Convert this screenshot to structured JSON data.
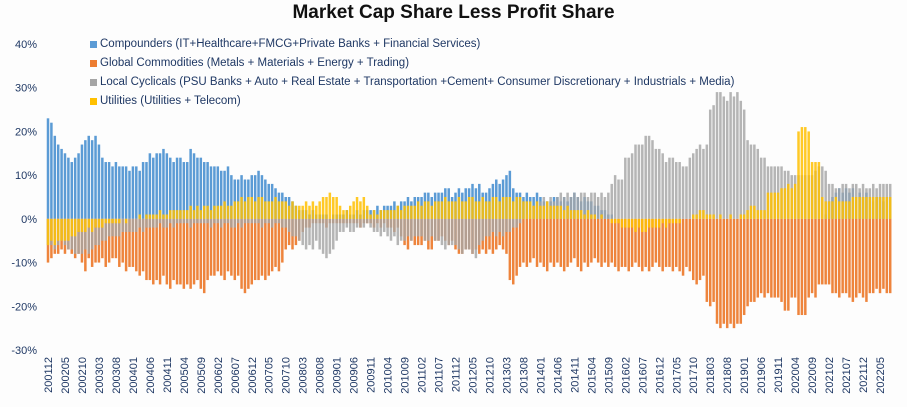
{
  "chart_data": {
    "type": "bar",
    "title": "Market Cap Share Less Profit Share",
    "xlabel": "",
    "ylabel": "",
    "ylim": [
      -30,
      40
    ],
    "yticks": [
      "40%",
      "30%",
      "20%",
      "10%",
      "0%",
      "-10%",
      "-20%",
      "-30%"
    ],
    "ytick_values": [
      40,
      30,
      20,
      10,
      0,
      -10,
      -20,
      -30
    ],
    "grid": false,
    "legend_position": "top-left",
    "period": "monthly, starting 200112",
    "xtick_every_months": 5,
    "xticks": [
      "200112",
      "200205",
      "200210",
      "200303",
      "200308",
      "200401",
      "200406",
      "200411",
      "200504",
      "200509",
      "200602",
      "200607",
      "200612",
      "200705",
      "200710",
      "200803",
      "200808",
      "200901",
      "200906",
      "200911",
      "201004",
      "201009",
      "201102",
      "201107",
      "201112",
      "201205",
      "201210",
      "201303",
      "201308",
      "201401",
      "201406",
      "201411",
      "201504",
      "201509",
      "201602",
      "201607",
      "201612",
      "201705",
      "201710",
      "201803",
      "201808",
      "201901",
      "201906",
      "201911",
      "202004",
      "202009",
      "202102",
      "202107",
      "202112",
      "202205"
    ],
    "series": [
      {
        "name": "Compounders (IT+Healthcare+FMCG+Private Banks + Financial Services)",
        "color": "#5b9bd5",
        "values": [
          23,
          22,
          19,
          17,
          16,
          15,
          14,
          13,
          14,
          15,
          17,
          18,
          19,
          18,
          19,
          17,
          14,
          13,
          13,
          12,
          13,
          12,
          12,
          12,
          11,
          12,
          12,
          11,
          13,
          13,
          15,
          14,
          15,
          15,
          16,
          15,
          14,
          13,
          14,
          14,
          13,
          13,
          16,
          15,
          14,
          14,
          13,
          13,
          12,
          12,
          12,
          11,
          11,
          12,
          10,
          9,
          9,
          10,
          9,
          9,
          10,
          10,
          11,
          10,
          9,
          8,
          8,
          7,
          6,
          6,
          5,
          5,
          4,
          3,
          2,
          2,
          2,
          1,
          2,
          1,
          1,
          1,
          1,
          0,
          1,
          1,
          1,
          1,
          2,
          1,
          1,
          2,
          1,
          2,
          2,
          2,
          2,
          3,
          2,
          3,
          3,
          3,
          4,
          3,
          4,
          4,
          5,
          4,
          5,
          5,
          5,
          6,
          6,
          5,
          6,
          6,
          6,
          7,
          7,
          5,
          6,
          7,
          6,
          7,
          7,
          8,
          7,
          8,
          6,
          6,
          7,
          8,
          9,
          8,
          9,
          10,
          11,
          7,
          6,
          6,
          5,
          6,
          5,
          5,
          6,
          5,
          4,
          4,
          4,
          5,
          5,
          4,
          5,
          4,
          5,
          6,
          5,
          4,
          5,
          4,
          4,
          3,
          3,
          2,
          2,
          1,
          1,
          0,
          0,
          0,
          0,
          0,
          0,
          0,
          0,
          0,
          0,
          0,
          0,
          0,
          0,
          0,
          0,
          0,
          0,
          0,
          0,
          0,
          0,
          0,
          0,
          0,
          0,
          0,
          0,
          0,
          0,
          0,
          0,
          0,
          0,
          0,
          0,
          0,
          0,
          0,
          0,
          0,
          0,
          0,
          0,
          0,
          0,
          0,
          0,
          0,
          0,
          0,
          0,
          0,
          0,
          0,
          0,
          0,
          0,
          0,
          0,
          0,
          0,
          1,
          4,
          5,
          6,
          7,
          6,
          7,
          6,
          7,
          5,
          6,
          5,
          6,
          5,
          4,
          5,
          5,
          4,
          5,
          5
        ]
      },
      {
        "name": "Global Commodities (Metals + Materials + Energy + Trading)",
        "color": "#ed7d31",
        "values": [
          -10,
          -9,
          -8,
          -8,
          -7,
          -8,
          -7,
          -8,
          -9,
          -8,
          -10,
          -12,
          -9,
          -11,
          -10,
          -10,
          -9,
          -11,
          -10,
          -9,
          -9,
          -11,
          -10,
          -12,
          -11,
          -11,
          -12,
          -13,
          -12,
          -14,
          -14,
          -15,
          -14,
          -15,
          -13,
          -15,
          -16,
          -14,
          -15,
          -15,
          -16,
          -15,
          -16,
          -15,
          -14,
          -16,
          -17,
          -14,
          -13,
          -13,
          -12,
          -13,
          -14,
          -12,
          -13,
          -14,
          -13,
          -16,
          -17,
          -16,
          -15,
          -14,
          -14,
          -13,
          -14,
          -13,
          -12,
          -11,
          -12,
          -10,
          -7,
          -6,
          -7,
          -6,
          -5,
          -3,
          -2,
          -2,
          -1,
          -1,
          -1,
          -1,
          -2,
          -1,
          -1,
          -1,
          -1,
          -1,
          -1,
          -1,
          -1,
          -1,
          -2,
          -1,
          -1,
          -1,
          -2,
          -1,
          -2,
          -1,
          -2,
          -2,
          -3,
          -2,
          -4,
          -6,
          -7,
          -5,
          -6,
          -6,
          -6,
          -5,
          -7,
          -7,
          -5,
          -5,
          -4,
          -5,
          -6,
          -5,
          -7,
          -8,
          -8,
          -7,
          -7,
          -8,
          -7,
          -8,
          -7,
          -8,
          -7,
          -8,
          -7,
          -6,
          -7,
          -8,
          -14,
          -15,
          -13,
          -11,
          -10,
          -11,
          -10,
          -9,
          -11,
          -10,
          -11,
          -12,
          -10,
          -11,
          -10,
          -11,
          -12,
          -11,
          -10,
          -9,
          -11,
          -12,
          -10,
          -11,
          -10,
          -9,
          -10,
          -11,
          -10,
          -11,
          -10,
          -11,
          -12,
          -11,
          -11,
          -12,
          -11,
          -10,
          -11,
          -12,
          -11,
          -12,
          -11,
          -10,
          -11,
          -12,
          -11,
          -11,
          -12,
          -11,
          -12,
          -13,
          -11,
          -12,
          -14,
          -15,
          -14,
          -13,
          -19,
          -20,
          -19,
          -24,
          -25,
          -24,
          -25,
          -24,
          -25,
          -24,
          -24,
          -22,
          -20,
          -19,
          -19,
          -18,
          -17,
          -18,
          -17,
          -18,
          -18,
          -18,
          -19,
          -21,
          -21,
          -18,
          -18,
          -22,
          -22,
          -22,
          -18,
          -17,
          -18,
          -15,
          -15,
          -15,
          -15,
          -17,
          -17,
          -18,
          -17,
          -17,
          -18,
          -19,
          -18,
          -17,
          -18,
          -19,
          -17,
          -17,
          -16,
          -17,
          -16,
          -17,
          -17
        ]
      },
      {
        "name": "Local Cyclicals (PSU Banks + Auto + Real Estate + Transportation +Cement+ Consumer Discretionary + Industrials + Media)",
        "color": "#a5a5a5",
        "values": [
          -6,
          -6,
          -7,
          -6,
          -5,
          -6,
          -7,
          -7,
          -8,
          -8,
          -8,
          -7,
          -8,
          -7,
          -6,
          -6,
          -5,
          -5,
          -4,
          -4,
          -4,
          -4,
          -3,
          -3,
          -3,
          -3,
          -3,
          -2,
          -3,
          -2,
          -2,
          -2,
          -2,
          -1,
          -2,
          -2,
          -1,
          -2,
          -1,
          -1,
          -1,
          -1,
          -2,
          -1,
          -1,
          -1,
          -1,
          -1,
          -2,
          -1,
          -1,
          -2,
          -1,
          -1,
          -2,
          -2,
          -1,
          -2,
          -1,
          -1,
          -1,
          -1,
          -1,
          -2,
          -1,
          -1,
          -2,
          -1,
          -1,
          -2,
          -2,
          -3,
          -4,
          -4,
          -5,
          -6,
          -7,
          -6,
          -7,
          -5,
          -7,
          -8,
          -9,
          -8,
          -7,
          -5,
          -3,
          -3,
          -2,
          -3,
          -3,
          -2,
          -2,
          -2,
          -1,
          -2,
          -3,
          -3,
          -4,
          -3,
          -4,
          -5,
          -4,
          -6,
          -5,
          -5,
          -4,
          -5,
          -4,
          -4,
          -4,
          -5,
          -5,
          -4,
          -5,
          -5,
          -6,
          -7,
          -6,
          -6,
          -6,
          -7,
          -8,
          -7,
          -7,
          -8,
          -9,
          -6,
          -5,
          -4,
          -4,
          -3,
          -4,
          -3,
          -4,
          -3,
          -3,
          -2,
          -2,
          -1,
          0,
          1,
          2,
          3,
          3,
          4,
          5,
          4,
          5,
          4,
          5,
          6,
          5,
          6,
          5,
          6,
          5,
          6,
          6,
          5,
          6,
          6,
          5,
          6,
          5,
          6,
          8,
          10,
          9,
          9,
          14,
          14,
          15,
          17,
          17,
          17,
          19,
          19,
          18,
          16,
          16,
          15,
          13,
          14,
          14,
          13,
          13,
          12,
          12,
          14,
          15,
          16,
          17,
          16,
          17,
          25,
          26,
          29,
          29,
          28,
          27,
          29,
          28,
          29,
          27,
          25,
          18,
          17,
          17,
          16,
          14,
          14,
          12,
          12,
          12,
          12,
          12,
          11,
          11,
          10,
          10,
          10,
          10,
          10,
          10,
          10,
          11,
          12,
          12,
          11,
          8,
          8,
          7,
          7,
          8,
          8,
          7,
          8,
          8,
          7,
          8,
          7,
          7,
          8,
          7,
          8,
          8,
          8,
          8
        ]
      },
      {
        "name": "Utilities (Utilities + Telecom)",
        "color": "#ffc000",
        "values": [
          -6,
          -5,
          -6,
          -5,
          -5,
          -5,
          -5,
          -4,
          -4,
          -3,
          -3,
          -3,
          -2,
          -3,
          -2,
          -2,
          -2,
          -1,
          -1,
          -1,
          -1,
          -1,
          0,
          -1,
          0,
          0,
          0,
          1,
          0,
          1,
          1,
          1,
          1,
          2,
          1,
          1,
          2,
          2,
          2,
          2,
          2,
          2,
          3,
          2,
          3,
          2,
          3,
          3,
          2,
          3,
          3,
          3,
          4,
          3,
          3,
          4,
          4,
          5,
          4,
          5,
          5,
          4,
          5,
          5,
          4,
          4,
          4,
          5,
          4,
          4,
          4,
          3,
          4,
          3,
          3,
          3,
          4,
          3,
          4,
          3,
          4,
          5,
          5,
          6,
          5,
          5,
          3,
          2,
          2,
          3,
          4,
          5,
          4,
          5,
          3,
          1,
          2,
          1,
          2,
          2,
          2,
          2,
          2,
          3,
          2,
          3,
          3,
          3,
          3,
          4,
          3,
          4,
          4,
          3,
          4,
          4,
          4,
          5,
          4,
          4,
          4,
          5,
          4,
          4,
          5,
          5,
          4,
          4,
          5,
          4,
          4,
          5,
          5,
          4,
          5,
          5,
          5,
          4,
          5,
          5,
          4,
          4,
          4,
          3,
          4,
          3,
          3,
          4,
          3,
          3,
          3,
          3,
          2,
          3,
          2,
          2,
          2,
          2,
          1,
          2,
          1,
          1,
          0,
          1,
          0,
          0,
          -1,
          -1,
          -1,
          -2,
          -2,
          -2,
          -2,
          -3,
          -2,
          -3,
          -3,
          -2,
          -2,
          -2,
          -2,
          -1,
          -2,
          -1,
          -1,
          -1,
          -1,
          0,
          0,
          0,
          1,
          1,
          2,
          2,
          1,
          1,
          1,
          0,
          1,
          0,
          0,
          1,
          0,
          0,
          1,
          1,
          2,
          3,
          3,
          2,
          2,
          2,
          6,
          6,
          6,
          6,
          7,
          7,
          8,
          7,
          8,
          20,
          21,
          21,
          20,
          13,
          13,
          13,
          5,
          4,
          4,
          4,
          5,
          4,
          4,
          4,
          4,
          5,
          5,
          5,
          5,
          5,
          5,
          5,
          5,
          5,
          5,
          5,
          5
        ]
      }
    ]
  }
}
